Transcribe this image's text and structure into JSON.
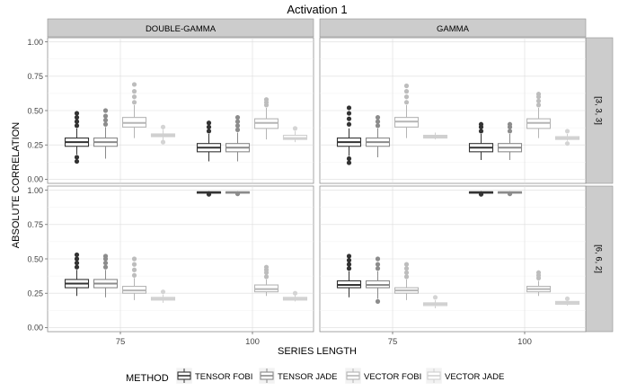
{
  "chart_data": {
    "type": "boxplot",
    "title": "Activation 1",
    "xlabel": "SERIES LENGTH",
    "ylabel": "ABSOLUTE CORRELATION",
    "ylim": [
      -0.03,
      1.03
    ],
    "yticks": [
      "0.00",
      "0.25",
      "0.50",
      "0.75",
      "1.00"
    ],
    "ytick_values": [
      0,
      0.25,
      0.5,
      0.75,
      1.0
    ],
    "categories": [
      "75",
      "100"
    ],
    "facet_cols": [
      "DOUBLE-GAMMA",
      "GAMMA"
    ],
    "facet_rows": [
      "[3, 3, 3]",
      "[6, 6, 2]"
    ],
    "grid": true,
    "legend": {
      "title": "METHOD",
      "position": "bottom",
      "entries": [
        "TENSOR FOBI",
        "TENSOR JADE",
        "VECTOR FOBI",
        "VECTOR JADE"
      ]
    },
    "colors": {
      "TENSOR FOBI": "#333333",
      "TENSOR JADE": "#777777",
      "VECTOR FOBI": "#aaaaaa",
      "VECTOR JADE": "#cccccc"
    },
    "panels": [
      {
        "row": 0,
        "col": 0,
        "boxes": [
          {
            "category": "75",
            "method": "TENSOR FOBI",
            "min": 0.18,
            "q1": 0.24,
            "median": 0.27,
            "q3": 0.3,
            "max": 0.37,
            "outliers_low": [
              0.13,
              0.16
            ],
            "outliers_high": [
              0.39,
              0.42,
              0.45,
              0.48
            ]
          },
          {
            "category": "75",
            "method": "TENSOR JADE",
            "min": 0.15,
            "q1": 0.24,
            "median": 0.27,
            "q3": 0.3,
            "max": 0.38,
            "outliers_low": [],
            "outliers_high": [
              0.4,
              0.43,
              0.46,
              0.5
            ]
          },
          {
            "category": "75",
            "method": "VECTOR FOBI",
            "min": 0.3,
            "q1": 0.38,
            "median": 0.41,
            "q3": 0.45,
            "max": 0.54,
            "outliers_low": [],
            "outliers_high": [
              0.56,
              0.6,
              0.64,
              0.69
            ]
          },
          {
            "category": "75",
            "method": "VECTOR JADE",
            "min": 0.28,
            "q1": 0.31,
            "median": 0.32,
            "q3": 0.33,
            "max": 0.36,
            "outliers_low": [
              0.27
            ],
            "outliers_high": [
              0.38
            ]
          },
          {
            "category": "100",
            "method": "TENSOR FOBI",
            "min": 0.13,
            "q1": 0.2,
            "median": 0.23,
            "q3": 0.26,
            "max": 0.33,
            "outliers_low": [],
            "outliers_high": [
              0.35,
              0.38,
              0.41
            ]
          },
          {
            "category": "100",
            "method": "TENSOR JADE",
            "min": 0.13,
            "q1": 0.2,
            "median": 0.23,
            "q3": 0.26,
            "max": 0.34,
            "outliers_low": [],
            "outliers_high": [
              0.36,
              0.39,
              0.42,
              0.45
            ]
          },
          {
            "category": "100",
            "method": "VECTOR FOBI",
            "min": 0.29,
            "q1": 0.37,
            "median": 0.41,
            "q3": 0.44,
            "max": 0.52,
            "outliers_low": [],
            "outliers_high": [
              0.54,
              0.56,
              0.58
            ]
          },
          {
            "category": "100",
            "method": "VECTOR JADE",
            "min": 0.27,
            "q1": 0.29,
            "median": 0.3,
            "q3": 0.32,
            "max": 0.35,
            "outliers_low": [],
            "outliers_high": [
              0.37
            ]
          }
        ]
      },
      {
        "row": 0,
        "col": 1,
        "boxes": [
          {
            "category": "75",
            "method": "TENSOR FOBI",
            "min": 0.17,
            "q1": 0.24,
            "median": 0.27,
            "q3": 0.3,
            "max": 0.37,
            "outliers_low": [
              0.12,
              0.15
            ],
            "outliers_high": [
              0.4,
              0.44,
              0.48,
              0.52
            ]
          },
          {
            "category": "75",
            "method": "TENSOR JADE",
            "min": 0.16,
            "q1": 0.24,
            "median": 0.27,
            "q3": 0.3,
            "max": 0.37,
            "outliers_low": [],
            "outliers_high": [
              0.39,
              0.42,
              0.45
            ]
          },
          {
            "category": "75",
            "method": "VECTOR FOBI",
            "min": 0.3,
            "q1": 0.38,
            "median": 0.42,
            "q3": 0.45,
            "max": 0.54,
            "outliers_low": [],
            "outliers_high": [
              0.56,
              0.6,
              0.64,
              0.68
            ]
          },
          {
            "category": "75",
            "method": "VECTOR JADE",
            "min": 0.29,
            "q1": 0.3,
            "median": 0.31,
            "q3": 0.32,
            "max": 0.34,
            "outliers_low": [],
            "outliers_high": []
          },
          {
            "category": "100",
            "method": "TENSOR FOBI",
            "min": 0.14,
            "q1": 0.2,
            "median": 0.23,
            "q3": 0.26,
            "max": 0.33,
            "outliers_low": [],
            "outliers_high": [
              0.35,
              0.38,
              0.4
            ]
          },
          {
            "category": "100",
            "method": "TENSOR JADE",
            "min": 0.14,
            "q1": 0.2,
            "median": 0.23,
            "q3": 0.26,
            "max": 0.33,
            "outliers_low": [],
            "outliers_high": [
              0.35,
              0.38,
              0.4
            ]
          },
          {
            "category": "100",
            "method": "VECTOR FOBI",
            "min": 0.3,
            "q1": 0.37,
            "median": 0.41,
            "q3": 0.44,
            "max": 0.52,
            "outliers_low": [],
            "outliers_high": [
              0.54,
              0.57,
              0.6,
              0.62
            ]
          },
          {
            "category": "100",
            "method": "VECTOR JADE",
            "min": 0.28,
            "q1": 0.29,
            "median": 0.3,
            "q3": 0.31,
            "max": 0.33,
            "outliers_low": [
              0.26
            ],
            "outliers_high": [
              0.35
            ]
          }
        ]
      },
      {
        "row": 1,
        "col": 0,
        "boxes": [
          {
            "category": "75",
            "method": "TENSOR FOBI",
            "min": 0.23,
            "q1": 0.29,
            "median": 0.32,
            "q3": 0.35,
            "max": 0.42,
            "outliers_low": [],
            "outliers_high": [
              0.44,
              0.47,
              0.5,
              0.53
            ]
          },
          {
            "category": "75",
            "method": "TENSOR JADE",
            "min": 0.22,
            "q1": 0.29,
            "median": 0.32,
            "q3": 0.35,
            "max": 0.42,
            "outliers_low": [],
            "outliers_high": [
              0.44,
              0.47,
              0.5,
              0.52
            ]
          },
          {
            "category": "75",
            "method": "VECTOR FOBI",
            "min": 0.2,
            "q1": 0.25,
            "median": 0.27,
            "q3": 0.3,
            "max": 0.36,
            "outliers_low": [],
            "outliers_high": [
              0.38,
              0.42,
              0.46,
              0.5
            ]
          },
          {
            "category": "75",
            "method": "VECTOR JADE",
            "min": 0.18,
            "q1": 0.2,
            "median": 0.21,
            "q3": 0.22,
            "max": 0.24,
            "outliers_low": [],
            "outliers_high": [
              0.26
            ]
          },
          {
            "category": "100",
            "method": "TENSOR FOBI",
            "min": 0.975,
            "q1": 0.982,
            "median": 0.985,
            "q3": 0.988,
            "max": 0.992,
            "outliers_low": [
              0.97
            ],
            "outliers_high": []
          },
          {
            "category": "100",
            "method": "TENSOR JADE",
            "min": 0.975,
            "q1": 0.982,
            "median": 0.985,
            "q3": 0.988,
            "max": 0.992,
            "outliers_low": [
              0.973
            ],
            "outliers_high": []
          },
          {
            "category": "100",
            "method": "VECTOR FOBI",
            "min": 0.23,
            "q1": 0.26,
            "median": 0.28,
            "q3": 0.31,
            "max": 0.35,
            "outliers_low": [],
            "outliers_high": [
              0.37,
              0.4,
              0.42,
              0.44
            ]
          },
          {
            "category": "100",
            "method": "VECTOR JADE",
            "min": 0.19,
            "q1": 0.2,
            "median": 0.21,
            "q3": 0.22,
            "max": 0.24,
            "outliers_low": [],
            "outliers_high": [
              0.25
            ]
          }
        ]
      },
      {
        "row": 1,
        "col": 1,
        "boxes": [
          {
            "category": "75",
            "method": "TENSOR FOBI",
            "min": 0.22,
            "q1": 0.29,
            "median": 0.31,
            "q3": 0.34,
            "max": 0.41,
            "outliers_low": [],
            "outliers_high": [
              0.43,
              0.46,
              0.49,
              0.52
            ]
          },
          {
            "category": "75",
            "method": "TENSOR JADE",
            "min": 0.21,
            "q1": 0.29,
            "median": 0.31,
            "q3": 0.34,
            "max": 0.41,
            "outliers_low": [
              0.19
            ],
            "outliers_high": [
              0.43,
              0.46,
              0.5
            ]
          },
          {
            "category": "75",
            "method": "VECTOR FOBI",
            "min": 0.2,
            "q1": 0.25,
            "median": 0.27,
            "q3": 0.29,
            "max": 0.35,
            "outliers_low": [],
            "outliers_high": [
              0.37,
              0.4,
              0.43,
              0.46
            ]
          },
          {
            "category": "75",
            "method": "VECTOR JADE",
            "min": 0.14,
            "q1": 0.16,
            "median": 0.17,
            "q3": 0.18,
            "max": 0.2,
            "outliers_low": [],
            "outliers_high": [
              0.22
            ]
          },
          {
            "category": "100",
            "method": "TENSOR FOBI",
            "min": 0.975,
            "q1": 0.982,
            "median": 0.985,
            "q3": 0.988,
            "max": 0.993,
            "outliers_low": [
              0.97
            ],
            "outliers_high": []
          },
          {
            "category": "100",
            "method": "TENSOR JADE",
            "min": 0.975,
            "q1": 0.982,
            "median": 0.985,
            "q3": 0.988,
            "max": 0.992,
            "outliers_low": [
              0.973
            ],
            "outliers_high": []
          },
          {
            "category": "100",
            "method": "VECTOR FOBI",
            "min": 0.23,
            "q1": 0.26,
            "median": 0.28,
            "q3": 0.3,
            "max": 0.34,
            "outliers_low": [],
            "outliers_high": [
              0.36,
              0.38,
              0.4
            ]
          },
          {
            "category": "100",
            "method": "VECTOR JADE",
            "min": 0.16,
            "q1": 0.17,
            "median": 0.18,
            "q3": 0.19,
            "max": 0.2,
            "outliers_low": [],
            "outliers_high": [
              0.21
            ]
          }
        ]
      }
    ]
  }
}
